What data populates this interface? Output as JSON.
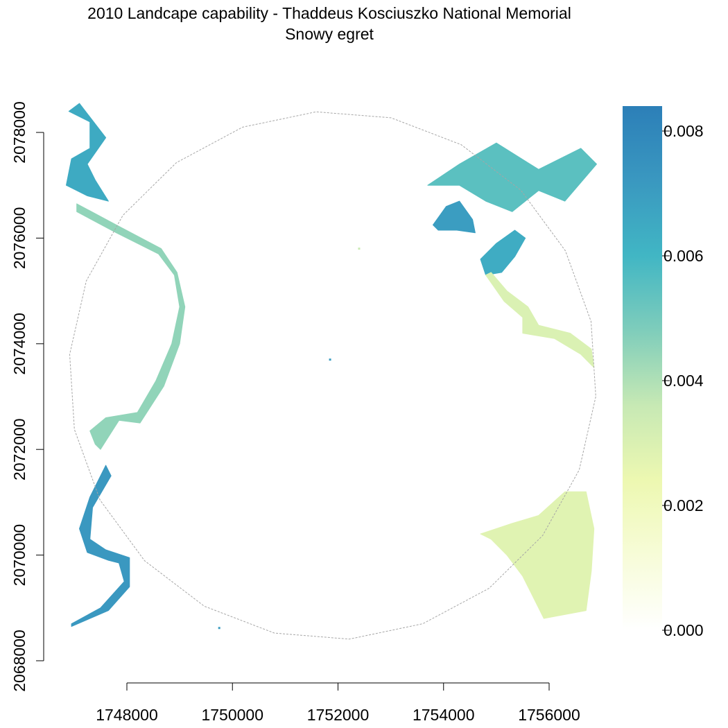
{
  "title": "2010 Landcape capability - Thaddeus Kosciuszko National Memorial",
  "subtitle": "Snowy egret",
  "colors": {
    "ramp": [
      "#ffffff",
      "#f7fcd8",
      "#edf8b1",
      "#c7e9b4",
      "#7fcdbb",
      "#41b6c4",
      "#3a98c0",
      "#2c7fb8"
    ],
    "boundary": "#a6a6a6",
    "axis": "#000000"
  },
  "chart_data": {
    "type": "heatmap",
    "x_axis": {
      "ticks": [
        1748000,
        1750000,
        1752000,
        1754000,
        1756000
      ],
      "tick_labels": [
        "1748000",
        "1750000",
        "1752000",
        "1754000",
        "1756000"
      ]
    },
    "y_axis": {
      "ticks": [
        2068000,
        2070000,
        2072000,
        2074000,
        2076000,
        2078000
      ],
      "tick_labels": [
        "2068000",
        "2070000",
        "2072000",
        "2074000",
        "2076000",
        "2078000"
      ]
    },
    "legend": {
      "placement": "right",
      "range": [
        0,
        0.0084
      ],
      "ticks": [
        0,
        0.002,
        0.004,
        0.006,
        0.008
      ],
      "tick_labels": [
        "0.000",
        "0.002",
        "0.004",
        "0.006",
        "0.008"
      ]
    },
    "boundary": {
      "shape": "circular study-area buffer",
      "center": [
        1751900,
        2073400
      ],
      "radius": 5000
    },
    "regions": [
      {
        "name": "west-river-upper",
        "value": 0.0045,
        "points": [
          [
            1747050,
            2076500
          ],
          [
            1747800,
            2076100
          ],
          [
            1748600,
            2075700
          ],
          [
            1748900,
            2075300
          ],
          [
            1749000,
            2074700
          ],
          [
            1748850,
            2074000
          ],
          [
            1748550,
            2073300
          ],
          [
            1748200,
            2072700
          ],
          [
            1747600,
            2072600
          ],
          [
            1747300,
            2072350
          ],
          [
            1747400,
            2072100
          ],
          [
            1747500,
            2072000
          ],
          [
            1747850,
            2072550
          ],
          [
            1748250,
            2072500
          ],
          [
            1748700,
            2073200
          ],
          [
            1749000,
            2074000
          ],
          [
            1749100,
            2074700
          ],
          [
            1748950,
            2075350
          ],
          [
            1748650,
            2075800
          ],
          [
            1747800,
            2076250
          ],
          [
            1747050,
            2076650
          ]
        ]
      },
      {
        "name": "west-river-lower",
        "value": 0.0072,
        "points": [
          [
            1747600,
            2071700
          ],
          [
            1747300,
            2071100
          ],
          [
            1747100,
            2070500
          ],
          [
            1747250,
            2070050
          ],
          [
            1747650,
            2069900
          ],
          [
            1747850,
            2069850
          ],
          [
            1747950,
            2069500
          ],
          [
            1747500,
            2069000
          ],
          [
            1746950,
            2068700
          ],
          [
            1746950,
            2068650
          ],
          [
            1747650,
            2068950
          ],
          [
            1748050,
            2069400
          ],
          [
            1748050,
            2069950
          ],
          [
            1747600,
            2070100
          ],
          [
            1747300,
            2070300
          ],
          [
            1747350,
            2070900
          ],
          [
            1747700,
            2071500
          ]
        ]
      },
      {
        "name": "west-patches-top",
        "value": 0.0065,
        "points": [
          [
            1746900,
            2078400
          ],
          [
            1747300,
            2078200
          ],
          [
            1747300,
            2077700
          ],
          [
            1746950,
            2077500
          ],
          [
            1746850,
            2077000
          ],
          [
            1747250,
            2076800
          ],
          [
            1747650,
            2076700
          ],
          [
            1747400,
            2077100
          ],
          [
            1747250,
            2077400
          ],
          [
            1747600,
            2077900
          ],
          [
            1747100,
            2078550
          ]
        ]
      },
      {
        "name": "northeast-pond",
        "value": 0.007,
        "points": [
          [
            1753800,
            2076250
          ],
          [
            1754050,
            2076600
          ],
          [
            1754300,
            2076700
          ],
          [
            1754550,
            2076350
          ],
          [
            1754600,
            2076100
          ],
          [
            1754250,
            2076150
          ],
          [
            1753900,
            2076150
          ]
        ]
      },
      {
        "name": "east-pond",
        "value": 0.0064,
        "points": [
          [
            1754700,
            2075600
          ],
          [
            1755000,
            2075900
          ],
          [
            1755350,
            2076150
          ],
          [
            1755550,
            2076000
          ],
          [
            1755350,
            2075650
          ],
          [
            1755100,
            2075350
          ],
          [
            1754800,
            2075300
          ]
        ]
      },
      {
        "name": "northeast-wetlands",
        "value": 0.0055,
        "points": [
          [
            1753700,
            2077000
          ],
          [
            1754300,
            2077400
          ],
          [
            1755000,
            2077800
          ],
          [
            1755800,
            2077300
          ],
          [
            1756600,
            2077700
          ],
          [
            1756900,
            2077400
          ],
          [
            1756300,
            2076700
          ],
          [
            1755800,
            2076900
          ],
          [
            1755300,
            2076500
          ],
          [
            1754800,
            2076700
          ],
          [
            1754300,
            2077000
          ]
        ]
      },
      {
        "name": "east-stream",
        "value": 0.003,
        "points": [
          [
            1754800,
            2075300
          ],
          [
            1755150,
            2074800
          ],
          [
            1755500,
            2074500
          ],
          [
            1755500,
            2074200
          ],
          [
            1756100,
            2074100
          ],
          [
            1756600,
            2073800
          ],
          [
            1756850,
            2073550
          ],
          [
            1756800,
            2073900
          ],
          [
            1756400,
            2074200
          ],
          [
            1755800,
            2074350
          ],
          [
            1755600,
            2074700
          ],
          [
            1755200,
            2075000
          ],
          [
            1754900,
            2075350
          ]
        ]
      },
      {
        "name": "southeast-wetlands",
        "value": 0.0028,
        "points": [
          [
            1754700,
            2070400
          ],
          [
            1755300,
            2070600
          ],
          [
            1755800,
            2070750
          ],
          [
            1756300,
            2071200
          ],
          [
            1756700,
            2071200
          ],
          [
            1756850,
            2070500
          ],
          [
            1756800,
            2069700
          ],
          [
            1756700,
            2068950
          ],
          [
            1755900,
            2068800
          ],
          [
            1755500,
            2069600
          ],
          [
            1755200,
            2070000
          ],
          [
            1754900,
            2070300
          ]
        ]
      }
    ],
    "spots": [
      {
        "x": 1749750,
        "y": 2068620,
        "value": 0.007
      },
      {
        "x": 1751850,
        "y": 2073700,
        "value": 0.007
      },
      {
        "x": 1752400,
        "y": 2075800,
        "value": 0.0035
      }
    ]
  }
}
